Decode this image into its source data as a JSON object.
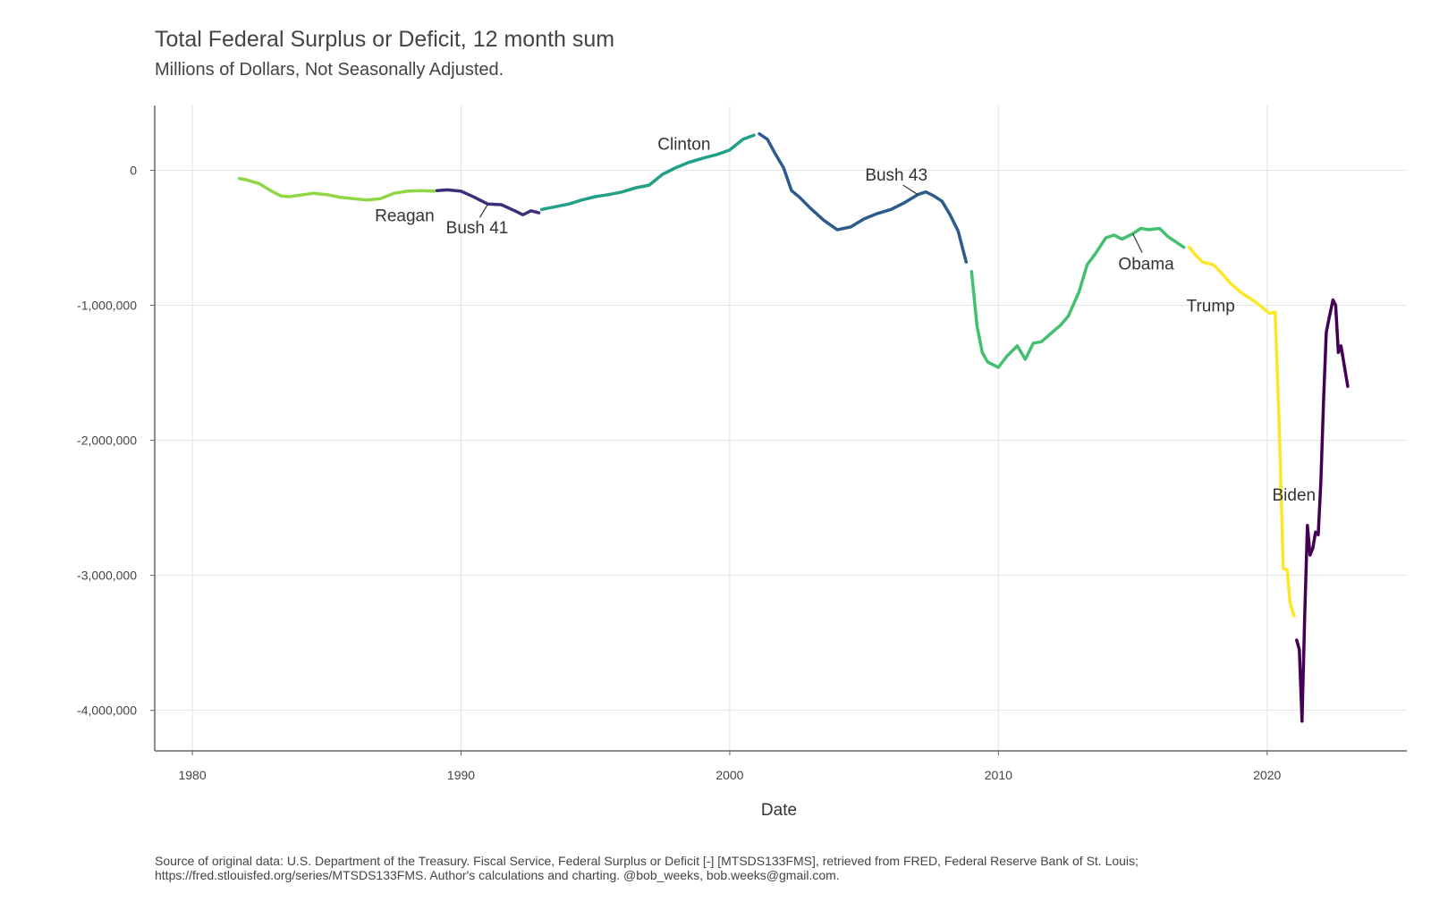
{
  "chart_data": {
    "type": "line",
    "title": "Total Federal Surplus or Deficit, 12 month sum",
    "subtitle": "Millions of Dollars, Not Seasonally Adjusted.",
    "xlabel": "Date",
    "ylabel": "",
    "xlim": [
      1978.6,
      2025.2
    ],
    "ylim": [
      -4300000,
      480000
    ],
    "x_ticks": [
      1980,
      1990,
      2000,
      2010,
      2020
    ],
    "x_tick_labels": [
      "1980",
      "1990",
      "2000",
      "2010",
      "2020"
    ],
    "y_ticks": [
      0,
      -1000000,
      -2000000,
      -3000000,
      -4000000
    ],
    "y_tick_labels": [
      "0",
      "-1,000,000",
      "-2,000,000",
      "-3,000,000",
      "-4,000,000"
    ],
    "grid": true,
    "legend": "none",
    "caption": "Source of original data: U.S. Department of the Treasury. Fiscal Service, Federal Surplus or Deficit [-] [MTSDS133FMS], retrieved from FRED, Federal Reserve Bank of St. Louis; https://fred.stlouisfed.org/series/MTSDS133FMS. Author's calculations and charting. @bob_weeks, bob.weeks@gmail.com.",
    "series": [
      {
        "name": "Reagan",
        "color": "#8fd744",
        "x": [
          1981.75,
          1982.0,
          1982.5,
          1983.0,
          1983.3,
          1983.6,
          1984.0,
          1984.5,
          1985.0,
          1985.5,
          1986.0,
          1986.5,
          1987.0,
          1987.5,
          1988.0,
          1988.5,
          1989.0
        ],
        "y": [
          -60000,
          -70000,
          -100000,
          -160000,
          -190000,
          -195000,
          -185000,
          -170000,
          -180000,
          -200000,
          -210000,
          -220000,
          -210000,
          -170000,
          -155000,
          -150000,
          -155000
        ]
      },
      {
        "name": "Bush 41",
        "color": "#3b2f7a",
        "x": [
          1989.1,
          1989.5,
          1990.0,
          1990.5,
          1991.0,
          1991.5,
          1992.0,
          1992.3,
          1992.6,
          1992.9
        ],
        "y": [
          -150000,
          -145000,
          -155000,
          -200000,
          -250000,
          -255000,
          -300000,
          -330000,
          -300000,
          -315000
        ]
      },
      {
        "name": "Clinton",
        "color": "#21a087",
        "x": [
          1993.0,
          1993.5,
          1994.0,
          1994.5,
          1995.0,
          1995.5,
          1996.0,
          1996.5,
          1997.0,
          1997.5,
          1998.0,
          1998.5,
          1999.0,
          1999.5,
          2000.0,
          2000.5,
          2000.9
        ],
        "y": [
          -290000,
          -270000,
          -250000,
          -220000,
          -195000,
          -180000,
          -160000,
          -130000,
          -110000,
          -30000,
          20000,
          60000,
          90000,
          115000,
          150000,
          230000,
          260000
        ]
      },
      {
        "name": "Bush 43",
        "color": "#2d5b8c",
        "x": [
          2001.1,
          2001.4,
          2001.7,
          2002.0,
          2002.3,
          2002.6,
          2003.0,
          2003.5,
          2004.0,
          2004.5,
          2005.0,
          2005.5,
          2006.0,
          2006.5,
          2007.0,
          2007.3,
          2007.6,
          2007.9,
          2008.2,
          2008.5,
          2008.8
        ],
        "y": [
          270000,
          230000,
          120000,
          20000,
          -150000,
          -200000,
          -280000,
          -370000,
          -440000,
          -420000,
          -360000,
          -320000,
          -290000,
          -240000,
          -180000,
          -160000,
          -190000,
          -230000,
          -330000,
          -450000,
          -680000
        ]
      },
      {
        "name": "Obama",
        "color": "#44bf70",
        "x": [
          2009.0,
          2009.2,
          2009.4,
          2009.6,
          2009.8,
          2010.0,
          2010.3,
          2010.7,
          2011.0,
          2011.3,
          2011.6,
          2012.0,
          2012.3,
          2012.6,
          2013.0,
          2013.3,
          2013.6,
          2014.0,
          2014.3,
          2014.6,
          2015.0,
          2015.3,
          2015.6,
          2016.0,
          2016.3,
          2016.6,
          2016.9
        ],
        "y": [
          -750000,
          -1150000,
          -1350000,
          -1420000,
          -1440000,
          -1460000,
          -1380000,
          -1300000,
          -1400000,
          -1280000,
          -1270000,
          -1200000,
          -1150000,
          -1080000,
          -900000,
          -700000,
          -620000,
          -500000,
          -480000,
          -510000,
          -470000,
          -430000,
          -440000,
          -430000,
          -490000,
          -530000,
          -570000
        ]
      },
      {
        "name": "Trump",
        "color": "#fde725",
        "x": [
          2017.1,
          2017.3,
          2017.6,
          2018.0,
          2018.3,
          2018.6,
          2019.0,
          2019.3,
          2019.6,
          2019.9,
          2020.1,
          2020.3,
          2020.45,
          2020.6,
          2020.75,
          2020.85,
          2021.0
        ],
        "y": [
          -570000,
          -620000,
          -680000,
          -700000,
          -760000,
          -830000,
          -900000,
          -940000,
          -980000,
          -1030000,
          -1060000,
          -1050000,
          -1900000,
          -2950000,
          -2960000,
          -3200000,
          -3300000
        ]
      },
      {
        "name": "Biden",
        "color": "#440154",
        "x": [
          2021.1,
          2021.2,
          2021.3,
          2021.4,
          2021.5,
          2021.6,
          2021.7,
          2021.8,
          2021.9,
          2022.0,
          2022.1,
          2022.2,
          2022.3,
          2022.45,
          2022.55,
          2022.65,
          2022.75,
          2022.85,
          2023.0
        ],
        "y": [
          -3480000,
          -3550000,
          -4080000,
          -3300000,
          -2630000,
          -2850000,
          -2800000,
          -2680000,
          -2700000,
          -2300000,
          -1700000,
          -1200000,
          -1100000,
          -960000,
          -1000000,
          -1350000,
          -1300000,
          -1420000,
          -1600000
        ]
      }
    ],
    "annotations": [
      {
        "text": "Reagan",
        "x": 1987.9,
        "y": -330000
      },
      {
        "text": "Bush 41",
        "x": 1990.6,
        "y": -420000
      },
      {
        "text": "Clinton",
        "x": 1998.3,
        "y": 200000
      },
      {
        "text": "Bush 43",
        "x": 2006.2,
        "y": -30000
      },
      {
        "text": "Obama",
        "x": 2015.5,
        "y": -690000
      },
      {
        "text": "Trump",
        "x": 2017.9,
        "y": -1000000
      },
      {
        "text": "Biden",
        "x": 2021.0,
        "y": -2400000
      }
    ],
    "leaders": [
      {
        "x1": 1990.7,
        "y1": -350000,
        "x2": 1991.0,
        "y2": -250000
      },
      {
        "x1": 2006.45,
        "y1": -110000,
        "x2": 2007.0,
        "y2": -180000
      },
      {
        "x1": 2015.35,
        "y1": -610000,
        "x2": 2015.0,
        "y2": -470000
      }
    ]
  }
}
